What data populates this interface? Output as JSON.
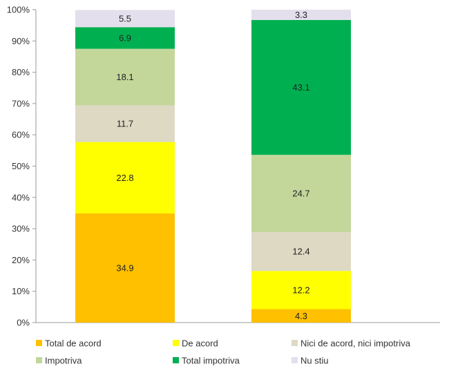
{
  "chart_data": {
    "type": "bar",
    "stacked": true,
    "percent": true,
    "categories": [
      "",
      ""
    ],
    "series": [
      {
        "name": "Total de acord",
        "color": "#FFC000",
        "values": [
          34.9,
          4.3
        ]
      },
      {
        "name": "De acord",
        "color": "#FFFF00",
        "values": [
          22.8,
          12.2
        ]
      },
      {
        "name": "Nici de acord, nici impotriva",
        "color": "#DDD9C3",
        "values": [
          11.7,
          12.4
        ]
      },
      {
        "name": "Impotriva",
        "color": "#C4D79B",
        "values": [
          18.1,
          24.7
        ]
      },
      {
        "name": "Total impotriva",
        "color": "#00B050",
        "values": [
          6.9,
          43.1
        ]
      },
      {
        "name": "Nu stiu",
        "color": "#E4DFEC",
        "values": [
          5.5,
          3.3
        ]
      }
    ],
    "y_ticks": [
      "0%",
      "10%",
      "20%",
      "30%",
      "40%",
      "50%",
      "60%",
      "70%",
      "80%",
      "90%",
      "100%"
    ],
    "ylim": [
      0,
      100
    ],
    "grid": false,
    "legend_position": "bottom"
  }
}
